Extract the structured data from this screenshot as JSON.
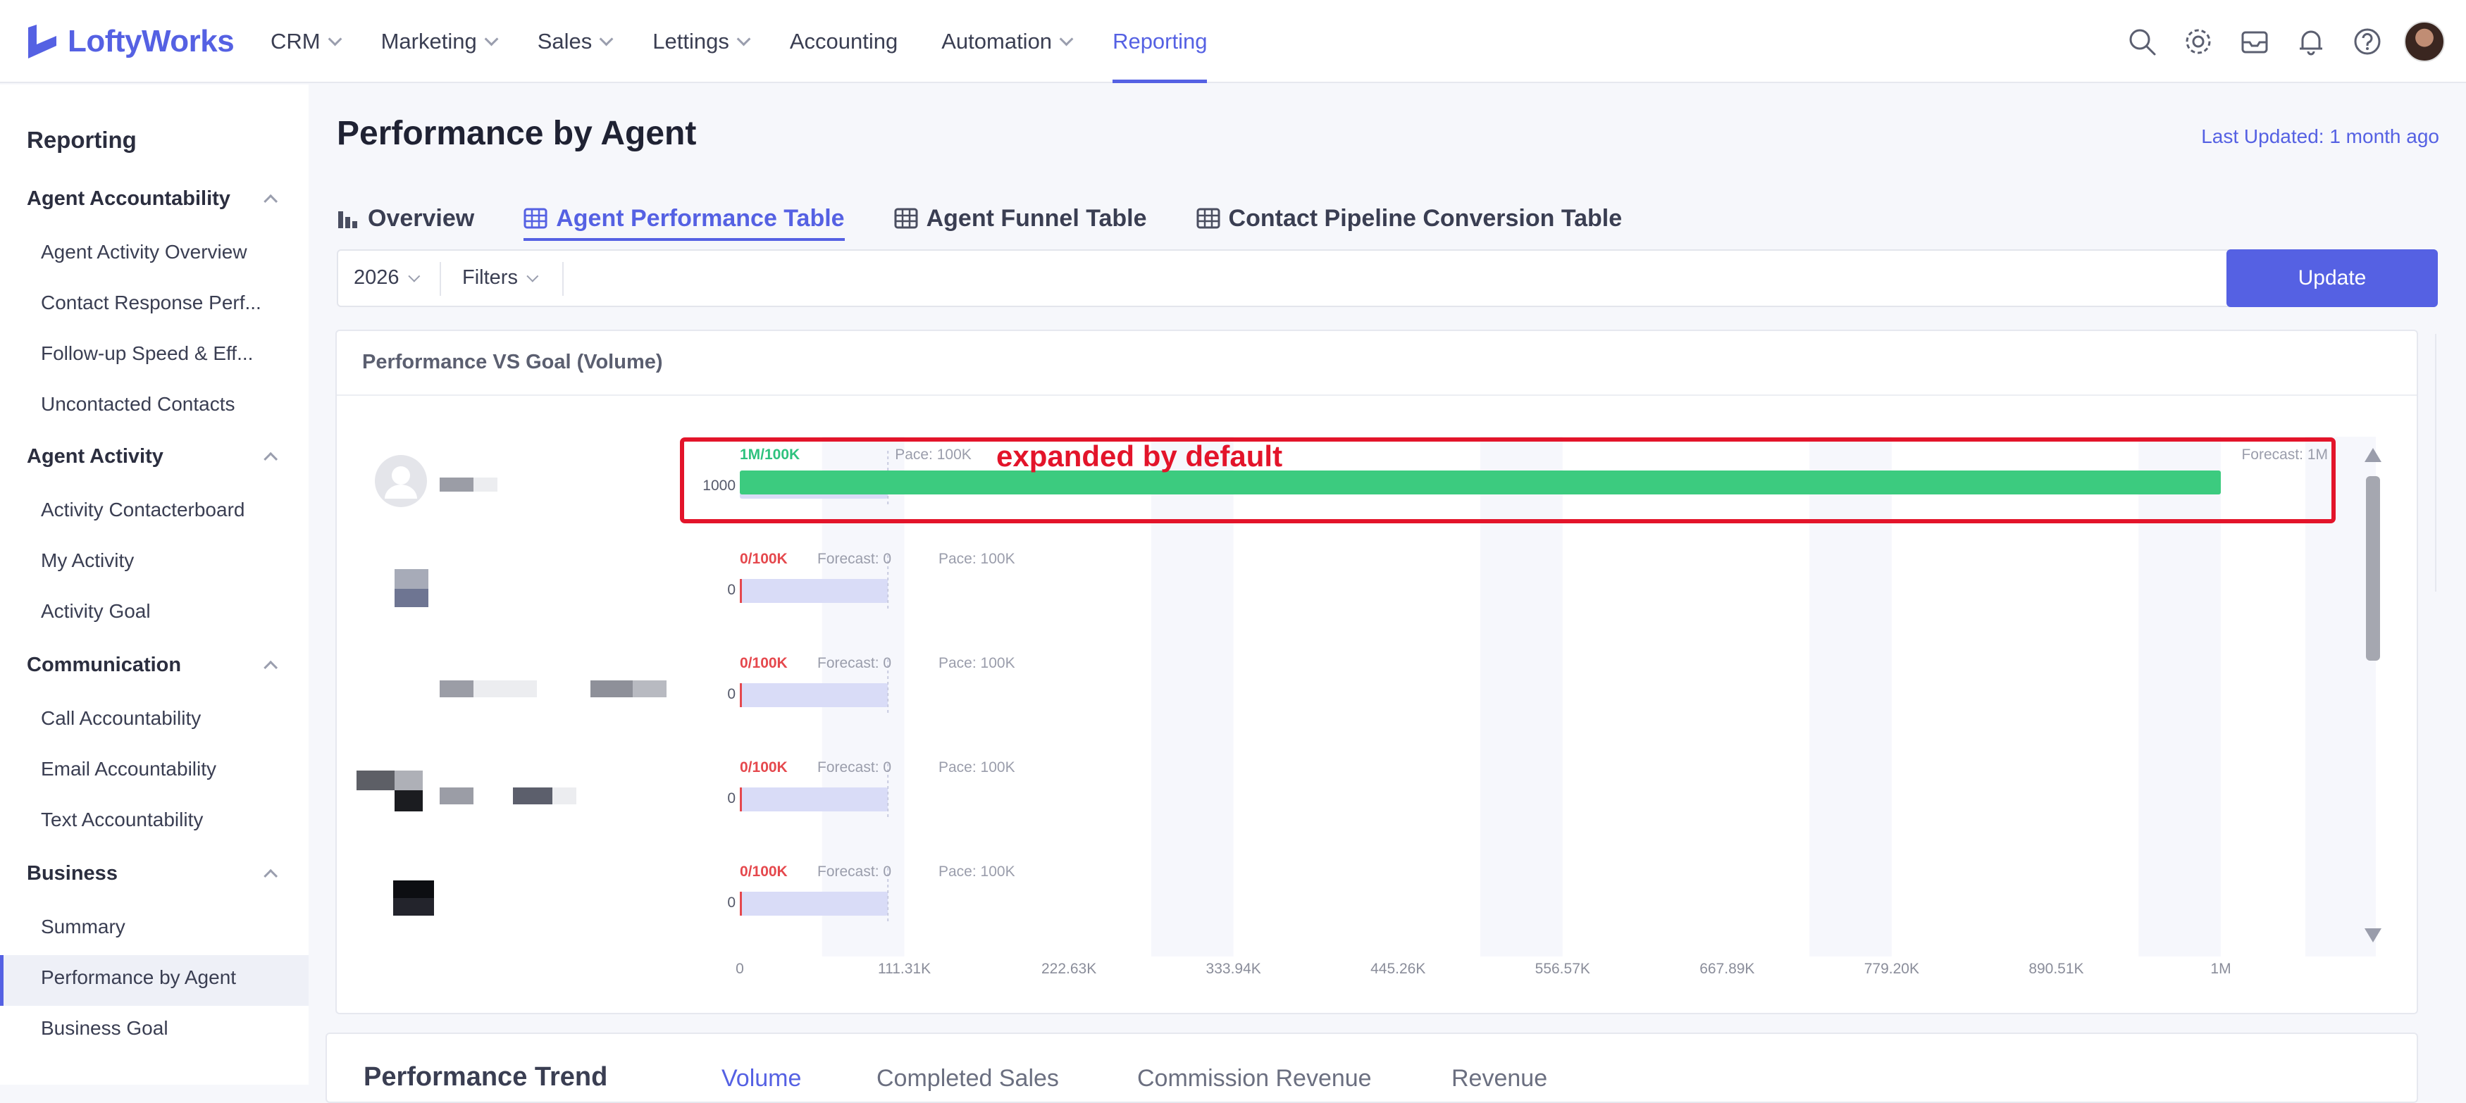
{
  "app": {
    "logo_text": "LoftyWorks"
  },
  "nav": {
    "items": [
      {
        "label": "CRM",
        "dropdown": true
      },
      {
        "label": "Marketing",
        "dropdown": true
      },
      {
        "label": "Sales",
        "dropdown": true
      },
      {
        "label": "Lettings",
        "dropdown": true
      },
      {
        "label": "Accounting",
        "dropdown": false
      },
      {
        "label": "Automation",
        "dropdown": true
      },
      {
        "label": "Reporting",
        "dropdown": false,
        "active": true
      }
    ],
    "icons": [
      "search-icon",
      "gear-icon",
      "inbox-icon",
      "bell-icon",
      "help-icon",
      "user-avatar"
    ]
  },
  "sidebar": {
    "title": "Reporting",
    "groups": [
      {
        "label": "Agent Accountability",
        "items": [
          "Agent Activity Overview",
          "Contact Response Perf...",
          "Follow-up Speed & Eff...",
          "Uncontacted Contacts"
        ]
      },
      {
        "label": "Agent Activity",
        "items": [
          "Activity Contacterboard",
          "My Activity",
          "Activity Goal"
        ]
      },
      {
        "label": "Communication",
        "items": [
          "Call Accountability",
          "Email Accountability",
          "Text Accountability"
        ]
      },
      {
        "label": "Business",
        "items": [
          "Summary",
          "Performance by Agent",
          "Business Goal"
        ]
      }
    ],
    "active_item": "Performance by Agent"
  },
  "page": {
    "title": "Performance by Agent",
    "last_updated": "Last Updated: 1 month ago",
    "tabs": [
      {
        "label": "Overview",
        "icon": "bar-chart-icon"
      },
      {
        "label": "Agent Performance Table",
        "icon": "table-icon",
        "active": true
      },
      {
        "label": "Agent Funnel Table",
        "icon": "table-icon"
      },
      {
        "label": "Contact Pipeline Conversion Table",
        "icon": "table-icon"
      }
    ],
    "filters": {
      "year": "2026",
      "filters_label": "Filters",
      "update_label": "Update"
    }
  },
  "chart_card": {
    "title": "Performance VS Goal (Volume)",
    "annotation": "expanded by default"
  },
  "chart_data": {
    "type": "bar",
    "orientation": "horizontal",
    "x_ticks": [
      "0",
      "111.31K",
      "222.63K",
      "333.94K",
      "445.26K",
      "556.57K",
      "667.89K",
      "779.20K",
      "890.51K",
      "1M"
    ],
    "xlim": [
      0,
      1000000
    ],
    "rows": [
      {
        "ratio": "1M/100K",
        "forecast": "Forecast: 1M",
        "pace": "Pace: 100K",
        "y_label": "1000",
        "value": 1000000,
        "goal": 100000,
        "status_color": "#2ec27e"
      },
      {
        "ratio": "0/100K",
        "forecast": "Forecast: 0",
        "pace": "Pace: 100K",
        "y_label": "0",
        "value": 0,
        "goal": 100000,
        "status_color": "#e5484d"
      },
      {
        "ratio": "0/100K",
        "forecast": "Forecast: 0",
        "pace": "Pace: 100K",
        "y_label": "0",
        "value": 0,
        "goal": 100000,
        "status_color": "#e5484d"
      },
      {
        "ratio": "0/100K",
        "forecast": "Forecast: 0",
        "pace": "Pace: 100K",
        "y_label": "0",
        "value": 0,
        "goal": 100000,
        "status_color": "#e5484d"
      },
      {
        "ratio": "0/100K",
        "forecast": "Forecast: 0",
        "pace": "Pace: 100K",
        "y_label": "0",
        "value": 0,
        "goal": 100000,
        "status_color": "#e5484d"
      }
    ],
    "colors": {
      "actual": "#3ccb7f",
      "goal": "#d9dcf7",
      "band": "#f6f7fc",
      "annotation": "#e3142a"
    }
  },
  "trend": {
    "title": "Performance Trend",
    "tabs": [
      {
        "label": "Volume",
        "active": true
      },
      {
        "label": "Completed Sales"
      },
      {
        "label": "Commission Revenue"
      },
      {
        "label": "Revenue"
      }
    ]
  }
}
